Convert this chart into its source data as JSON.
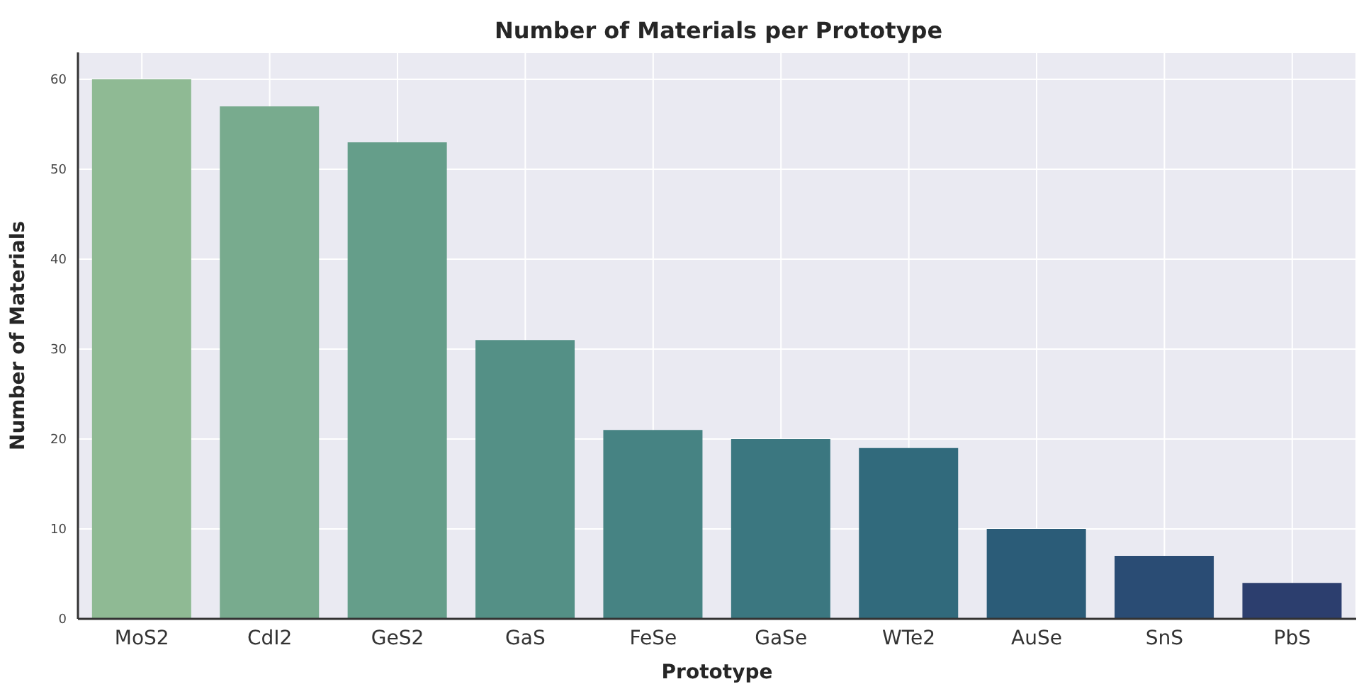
{
  "chart_data": {
    "type": "bar",
    "title": "Number of Materials per Prototype",
    "xlabel": "Prototype",
    "ylabel": "Number of Materials",
    "categories": [
      "MoS2",
      "CdI2",
      "GeS2",
      "GaS",
      "FeSe",
      "GaSe",
      "WTe2",
      "AuSe",
      "SnS",
      "PbS"
    ],
    "values": [
      60,
      57,
      53,
      31,
      21,
      20,
      19,
      10,
      7,
      4
    ],
    "colors": [
      "#8fba94",
      "#78ab8e",
      "#659e8a",
      "#549086",
      "#468383",
      "#3b7780",
      "#316a7c",
      "#2b5c78",
      "#2a4c74",
      "#2c3e6e"
    ],
    "ylim": [
      0,
      63
    ],
    "yticks": [
      0,
      10,
      20,
      30,
      40,
      50,
      60
    ],
    "grid": true
  }
}
